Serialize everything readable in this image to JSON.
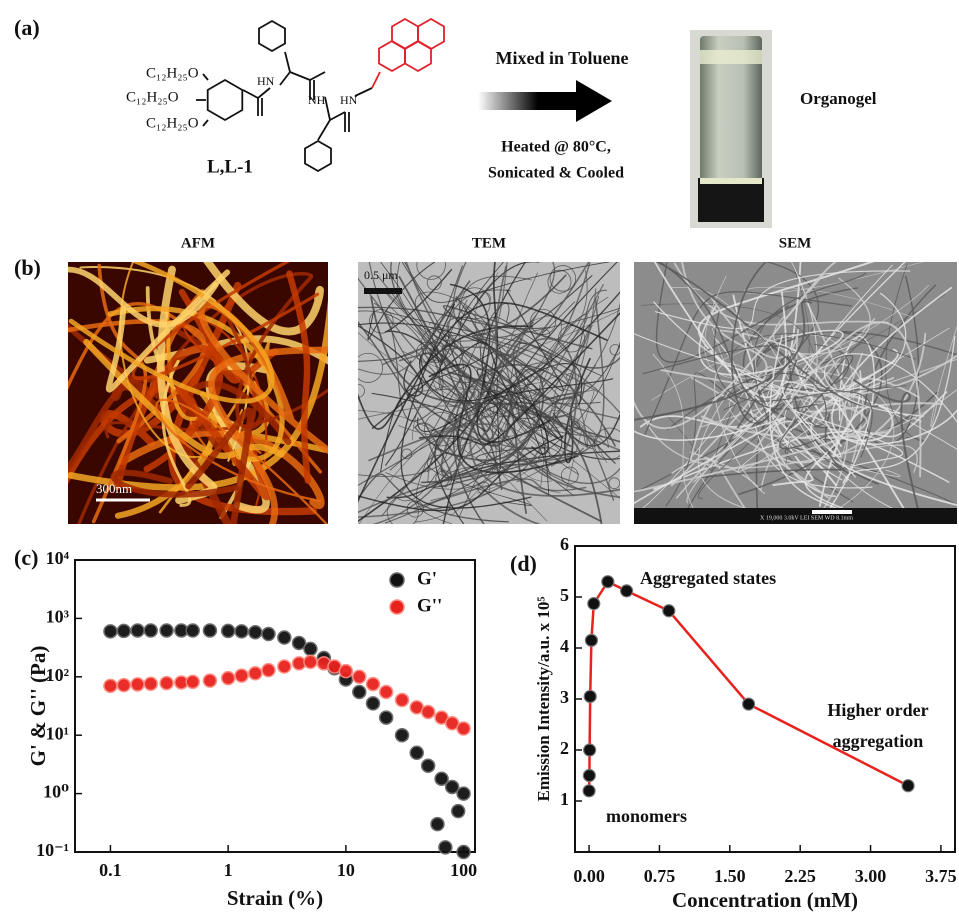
{
  "panel_a": {
    "label": "(a)",
    "molecule": {
      "substituents": [
        "C₁₂H₂₅O",
        "C₁₂H₂₅O",
        "C₁₂H₂₅O"
      ],
      "amides": [
        "HN",
        "NH",
        "HN"
      ],
      "name": "L,L-1"
    },
    "process": {
      "title": "Mixed in Toluene",
      "conditions": [
        "Heated @ 80°C,",
        "Sonicated & Cooled"
      ]
    },
    "product": "Organogel"
  },
  "panel_b": {
    "label": "(b)",
    "images": [
      {
        "title": "AFM",
        "scale": "300nm"
      },
      {
        "title": "TEM",
        "scale": "0.5 μm"
      },
      {
        "title": "SEM",
        "footer": "X 19,000   3.0kV   LEI   SEM   WD 8.1mm"
      }
    ]
  },
  "chart_data": [
    {
      "type": "scatter",
      "panel_label": "(c)",
      "xlabel": "Strain (%)",
      "ylabel": "G' & G'' (Pa)",
      "xscale": "log",
      "yscale": "log",
      "xlim": [
        0.05,
        125
      ],
      "ylim": [
        0.1,
        10000
      ],
      "xticks": [
        0.1,
        1,
        10,
        100
      ],
      "yticks": [
        {
          "value": 0.1,
          "label": "10⁻¹"
        },
        {
          "value": 1,
          "label": "10⁰"
        },
        {
          "value": 10,
          "label": "10¹"
        },
        {
          "value": 100,
          "label": "10²"
        },
        {
          "value": 1000,
          "label": "10³"
        },
        {
          "value": 10000,
          "label": "10⁴"
        }
      ],
      "legend": "upper right",
      "series": [
        {
          "name": "G'",
          "color": "#111111",
          "x": [
            0.1,
            0.13,
            0.17,
            0.22,
            0.3,
            0.4,
            0.5,
            0.7,
            1,
            1.3,
            1.7,
            2.2,
            3,
            4,
            5,
            6.5,
            8,
            10,
            13,
            17,
            22,
            30,
            40,
            50,
            65,
            80,
            100,
            60,
            70,
            90,
            100
          ],
          "values": [
            600,
            610,
            620,
            620,
            620,
            620,
            620,
            620,
            610,
            600,
            580,
            540,
            470,
            380,
            300,
            210,
            140,
            90,
            55,
            35,
            20,
            10,
            5,
            3,
            1.8,
            1.3,
            1.0,
            0.3,
            0.12,
            0.5,
            0.1
          ]
        },
        {
          "name": "G''",
          "color": "#e8231e",
          "x": [
            0.1,
            0.13,
            0.17,
            0.22,
            0.3,
            0.4,
            0.5,
            0.7,
            1,
            1.3,
            1.7,
            2.2,
            3,
            4,
            5,
            6.5,
            8,
            10,
            13,
            17,
            22,
            30,
            40,
            50,
            65,
            80,
            100
          ],
          "values": [
            70,
            72,
            74,
            76,
            78,
            80,
            82,
            86,
            95,
            105,
            115,
            130,
            150,
            170,
            180,
            170,
            150,
            125,
            100,
            75,
            55,
            40,
            30,
            25,
            20,
            16,
            13
          ]
        }
      ]
    },
    {
      "type": "line",
      "panel_label": "(d)",
      "xlabel": "Concentration (mM)",
      "ylabel": "Emission Intensity/a.u. x 10⁵",
      "xlim": [
        -0.15,
        3.9
      ],
      "ylim": [
        0,
        6
      ],
      "xticks": [
        {
          "value": 0,
          "label": "0.00"
        },
        {
          "value": 0.75,
          "label": "0.75"
        },
        {
          "value": 1.5,
          "label": "1.50"
        },
        {
          "value": 2.25,
          "label": "2.25"
        },
        {
          "value": 3,
          "label": "3.00"
        },
        {
          "value": 3.75,
          "label": "3.75"
        }
      ],
      "yticks": [
        1,
        2,
        3,
        4,
        5,
        6
      ],
      "annotations": [
        "Aggregated states",
        "Higher order",
        "aggregation",
        "monomers"
      ],
      "series": [
        {
          "color": "#e8231e",
          "marker_color": "#111111",
          "x": [
            0,
            0.003,
            0.006,
            0.012,
            0.025,
            0.05,
            0.2,
            0.4,
            0.85,
            1.7,
            3.4
          ],
          "values": [
            1.2,
            1.5,
            2.0,
            3.05,
            4.15,
            4.87,
            5.3,
            5.12,
            4.73,
            2.9,
            1.3
          ]
        }
      ]
    }
  ]
}
